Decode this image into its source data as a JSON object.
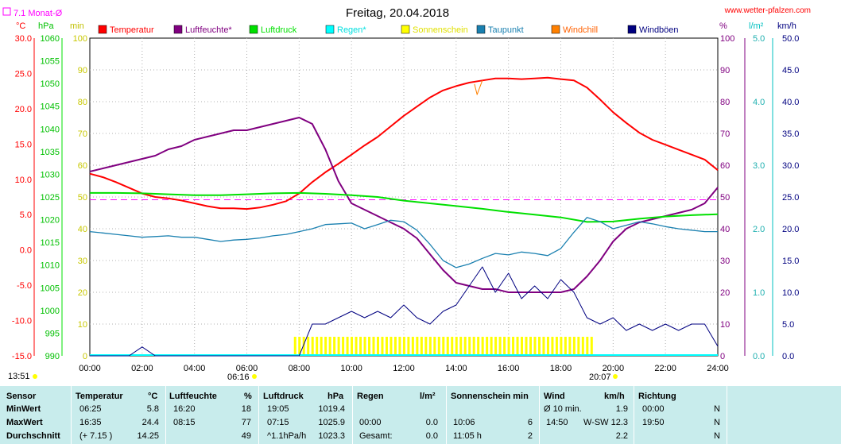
{
  "header": {
    "monat_label": "7.1 Monat-Ø",
    "website": "www.wetter-pfalzen.com",
    "sunrise": "06:16",
    "sunset": "20:07",
    "left_time": "13:51"
  },
  "colors": {
    "temperature": "#ff0000",
    "humidity": "#800080",
    "pressure": "#00e000",
    "rain": "#00ffff",
    "sunshine": "#ffff00",
    "dewpoint": "#1a80b0",
    "windchill": "#ff8000",
    "gusts": "#000080",
    "monat": "#ff00ff"
  },
  "chart_data": {
    "type": "line",
    "title": "Freitag, 20.04.2018",
    "x_ticks": [
      "00:00",
      "02:00",
      "04:00",
      "06:00",
      "08:00",
      "10:00",
      "12:00",
      "14:00",
      "16:00",
      "18:00",
      "20:00",
      "22:00",
      "24:00"
    ],
    "legend": [
      "Temperatur",
      "Luftfeuchte*",
      "Luftdruck",
      "Regen*",
      "Sonnenschein",
      "Taupunkt",
      "Windchill",
      "Windböen"
    ],
    "axes": {
      "temp": {
        "unit": "°C",
        "ticks": [
          "30.0",
          "25.0",
          "20.0",
          "15.0",
          "10.0",
          "5.0",
          "0.0",
          "-5.0",
          "-10.0",
          "-15.0"
        ],
        "range": [
          -15,
          30
        ]
      },
      "pressure": {
        "unit": "hPa",
        "ticks": [
          "1060",
          "1055",
          "1050",
          "1045",
          "1040",
          "1035",
          "1030",
          "1025",
          "1020",
          "1015",
          "1010",
          "1005",
          "1000",
          "995",
          "990"
        ],
        "range": [
          990,
          1060
        ]
      },
      "sun_min": {
        "unit": "min",
        "ticks": [
          "100",
          "90",
          "80",
          "70",
          "60",
          "50",
          "40",
          "30",
          "20",
          "10",
          "0"
        ],
        "range": [
          0,
          100
        ]
      },
      "humidity": {
        "unit": "%",
        "ticks": [
          "100",
          "90",
          "80",
          "70",
          "60",
          "50",
          "40",
          "30",
          "20",
          "10",
          "0"
        ],
        "range": [
          0,
          100
        ]
      },
      "rain": {
        "unit": "l/m²",
        "ticks": [
          "5.0",
          "4.0",
          "3.0",
          "2.0",
          "1.0",
          "0.0"
        ],
        "range": [
          0,
          5
        ]
      },
      "wind": {
        "unit": "km/h",
        "ticks": [
          "50.0",
          "45.0",
          "40.0",
          "35.0",
          "30.0",
          "25.0",
          "20.0",
          "15.0",
          "10.0",
          "5.0",
          "0.0"
        ],
        "range": [
          0,
          50
        ]
      }
    },
    "monat_avg_temp": 7.1,
    "series": [
      {
        "name": "Temperatur",
        "axis": "temp",
        "x": [
          0,
          0.5,
          1,
          1.5,
          2,
          2.5,
          3,
          3.5,
          4,
          4.5,
          5,
          5.5,
          6,
          6.5,
          7,
          7.5,
          8,
          8.5,
          9,
          9.5,
          10,
          10.5,
          11,
          11.5,
          12,
          12.5,
          13,
          13.5,
          14,
          14.5,
          15,
          15.5,
          16,
          16.5,
          17,
          17.5,
          18,
          18.5,
          19,
          19.5,
          20,
          20.5,
          21,
          21.5,
          22,
          22.5,
          23,
          23.5,
          24
        ],
        "y": [
          10.8,
          10.3,
          9.6,
          8.8,
          8.0,
          7.5,
          7.3,
          7.0,
          6.6,
          6.2,
          5.9,
          5.9,
          5.8,
          6.0,
          6.4,
          6.9,
          8.0,
          9.6,
          11.0,
          12.2,
          13.5,
          14.8,
          16.0,
          17.5,
          19.0,
          20.3,
          21.6,
          22.6,
          23.2,
          23.7,
          24.0,
          24.3,
          24.3,
          24.2,
          24.3,
          24.4,
          24.2,
          24.0,
          23.0,
          21.3,
          19.5,
          18.0,
          16.6,
          15.6,
          14.9,
          14.2,
          13.5,
          12.8,
          11.3
        ]
      },
      {
        "name": "Luftfeuchte*",
        "axis": "humidity",
        "x": [
          0,
          0.5,
          1,
          1.5,
          2,
          2.5,
          3,
          3.5,
          4,
          4.5,
          5,
          5.5,
          6,
          6.5,
          7,
          7.5,
          8,
          8.5,
          9,
          9.5,
          10,
          10.5,
          11,
          11.5,
          12,
          12.5,
          13,
          13.5,
          14,
          14.5,
          15,
          15.5,
          16,
          16.5,
          17,
          17.5,
          18,
          18.5,
          19,
          19.5,
          20,
          20.5,
          21,
          21.5,
          22,
          22.5,
          23,
          23.5,
          24
        ],
        "y": [
          58,
          59,
          60,
          61,
          62,
          63,
          65,
          66,
          68,
          69,
          70,
          71,
          71,
          72,
          73,
          74,
          75,
          73,
          65,
          55,
          48,
          46,
          44,
          42,
          40,
          37,
          32,
          27,
          23,
          22,
          21,
          21,
          20,
          20,
          20,
          20,
          20,
          21,
          25,
          30,
          36,
          40,
          42,
          43,
          44,
          45,
          46,
          48,
          53
        ]
      },
      {
        "name": "Luftdruck",
        "axis": "pressure",
        "x": [
          0,
          1,
          2,
          3,
          4,
          5,
          6,
          7,
          8,
          9,
          10,
          11,
          12,
          13,
          14,
          15,
          16,
          17,
          18,
          19,
          20,
          21,
          22,
          23,
          24
        ],
        "y": [
          1025.9,
          1025.9,
          1025.8,
          1025.6,
          1025.4,
          1025.4,
          1025.6,
          1025.8,
          1025.9,
          1025.7,
          1025.4,
          1025.0,
          1024.2,
          1023.6,
          1023.0,
          1022.4,
          1021.7,
          1021.1,
          1020.5,
          1019.5,
          1019.6,
          1020.2,
          1020.7,
          1021.0,
          1021.2
        ]
      },
      {
        "name": "Taupunkt",
        "axis": "temp",
        "x": [
          0,
          0.5,
          1,
          1.5,
          2,
          2.5,
          3,
          3.5,
          4,
          4.5,
          5,
          5.5,
          6,
          6.5,
          7,
          7.5,
          8,
          8.5,
          9,
          9.5,
          10,
          10.5,
          11,
          11.5,
          12,
          12.5,
          13,
          13.5,
          14,
          14.5,
          15,
          15.5,
          16,
          16.5,
          17,
          17.5,
          18,
          18.5,
          19,
          19.5,
          20,
          20.5,
          21,
          21.5,
          22,
          22.5,
          23,
          23.5,
          24
        ],
        "y": [
          2.6,
          2.4,
          2.2,
          2.0,
          1.8,
          1.9,
          2.0,
          1.8,
          1.8,
          1.5,
          1.2,
          1.4,
          1.5,
          1.7,
          2.0,
          2.2,
          2.6,
          3.0,
          3.6,
          3.7,
          3.8,
          3.0,
          3.6,
          4.2,
          4.0,
          2.8,
          0.8,
          -1.5,
          -2.5,
          -2.0,
          -1.2,
          -0.5,
          -0.7,
          -0.3,
          -0.5,
          -0.8,
          0.2,
          2.5,
          4.6,
          4.0,
          3.0,
          3.5,
          4.0,
          3.7,
          3.3,
          3.0,
          2.8,
          2.6,
          2.6
        ]
      },
      {
        "name": "Windböen",
        "axis": "wind",
        "x": [
          0,
          0.5,
          1,
          1.5,
          2,
          2.5,
          3,
          3.5,
          4,
          4.5,
          5,
          5.5,
          6,
          6.5,
          7,
          7.5,
          8,
          8.5,
          9,
          9.5,
          10,
          10.5,
          11,
          11.5,
          12,
          12.5,
          13,
          13.5,
          14,
          14.5,
          15,
          15.5,
          16,
          16.5,
          17,
          17.5,
          18,
          18.5,
          19,
          19.5,
          20,
          20.5,
          21,
          21.5,
          22,
          22.5,
          23,
          23.5,
          24
        ],
        "y": [
          0,
          0,
          0,
          0,
          1.4,
          0,
          0,
          0,
          0,
          0,
          0,
          0,
          0,
          0,
          0,
          0,
          0,
          5,
          5,
          6,
          7,
          6,
          7,
          6,
          8,
          6,
          5,
          7,
          8,
          11,
          14,
          10,
          13,
          9,
          11,
          9,
          12,
          10,
          6,
          5,
          6,
          4,
          5,
          4,
          5,
          4,
          5,
          5,
          1.5
        ]
      },
      {
        "name": "Windchill",
        "axis": "temp",
        "x": [
          14.7,
          14.8,
          14.9,
          15.0
        ],
        "y": [
          23.5,
          22.0,
          23.0,
          24.0
        ]
      }
    ],
    "sunshine_minutes_per_10min": {
      "start_hour": 7.8,
      "end_hour": 19.2,
      "value": 6
    }
  },
  "table": {
    "headers": {
      "sensor": "Sensor",
      "temp": "Temperatur",
      "temp_u": "°C",
      "hum": "Luftfeuchte",
      "hum_u": "%",
      "press": "Luftdruck",
      "press_u": "hPa",
      "rain": "Regen",
      "rain_u": "l/m²",
      "sun": "Sonnenschein min",
      "wind": "Wind",
      "wind_u": "km/h",
      "dir": "Richtung"
    },
    "rows": [
      {
        "label": "MinWert",
        "t_time": "06:25",
        "t_val": "5.8",
        "h_time": "16:20",
        "h_val": "18",
        "p_time": "19:05",
        "p_val": "1019.4",
        "r_time": "",
        "r_val": "",
        "s_time": "",
        "s_val": "",
        "w_time": "Ø 10 min.",
        "w_val": "1.9",
        "d_time": "00:00",
        "d_val": "N"
      },
      {
        "label": "MaxWert",
        "t_time": "16:35",
        "t_val": "24.4",
        "h_time": "08:15",
        "h_val": "77",
        "p_time": "07:15",
        "p_val": "1025.9",
        "r_time": "00:00",
        "r_val": "0.0",
        "s_time": "10:06",
        "s_val": "6",
        "w_time": "14:50",
        "w_val": "W-SW 12.3",
        "d_time": "19:50",
        "d_val": "N"
      },
      {
        "label": "Durchschnitt",
        "t_time": "(+ 7.15 )",
        "t_val": "14.25",
        "h_time": "",
        "h_val": "49",
        "p_time": "^1.1hPa/h",
        "p_val": "1023.3",
        "r_time": "Gesamt:",
        "r_val": "0.0",
        "s_time": "11:05 h",
        "s_val": "2",
        "w_time": "",
        "w_val": "2.2",
        "d_time": "",
        "d_val": "N"
      }
    ]
  }
}
